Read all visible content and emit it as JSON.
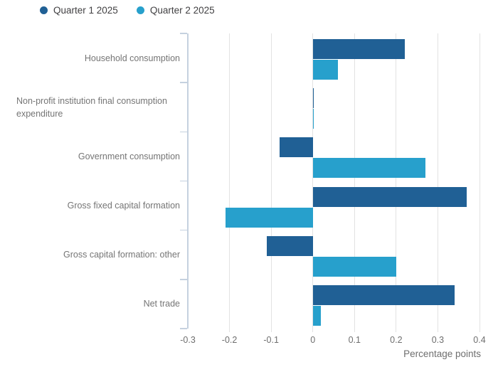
{
  "chart_data": {
    "type": "bar",
    "orientation": "horizontal",
    "categories": [
      "Household consumption",
      "Non-profit institution final consumption expenditure",
      "Government consumption",
      "Gross fixed capital formation",
      "Gross capital formation: other",
      "Net trade"
    ],
    "series": [
      {
        "name": "Quarter 1 2025",
        "color": "#206095",
        "values": [
          0.22,
          0.0,
          -0.08,
          0.37,
          -0.11,
          0.34
        ]
      },
      {
        "name": "Quarter 2 2025",
        "color": "#27a0cc",
        "values": [
          0.06,
          0.0,
          0.27,
          -0.21,
          0.2,
          0.02
        ]
      }
    ],
    "xlabel": "Percentage points",
    "xlim": [
      -0.3,
      0.4
    ],
    "xticks": [
      "-0.3",
      "-0.2",
      "-0.1",
      "0",
      "0.1",
      "0.2",
      "0.3",
      "0.4"
    ],
    "grid": true,
    "zero_baseline": true,
    "legend_position": "top-left",
    "grid_color": "#e2e2e2",
    "axis_color": "#c5d1df",
    "label_color": "#757575",
    "tick_label_color": "#6e6e6e",
    "legend_text_color": "#414042"
  }
}
